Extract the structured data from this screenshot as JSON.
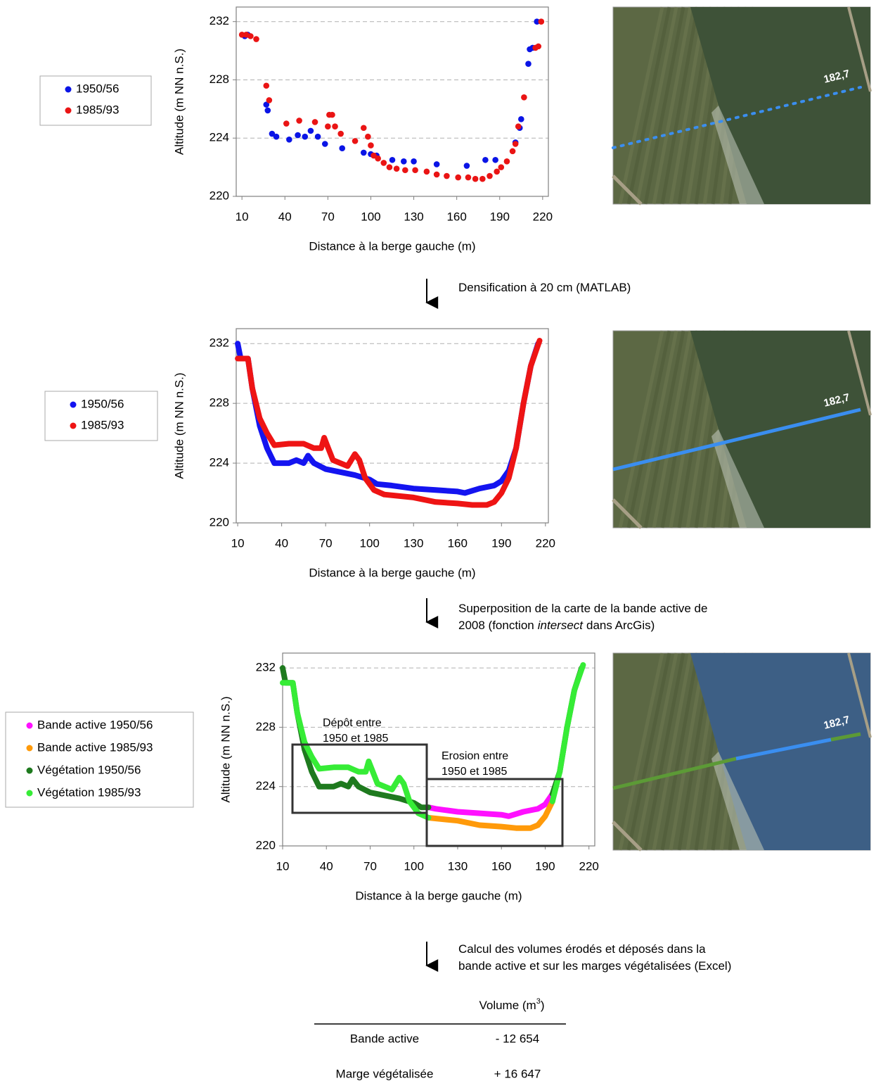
{
  "chart_data": [
    {
      "type": "scatter",
      "x_label": "Distance à la berge gauche (m)",
      "y_label": "Altitude (m NN n.S.)",
      "xlim": [
        6,
        224
      ],
      "ylim": [
        220,
        233
      ],
      "xticks": [
        10,
        40,
        70,
        100,
        130,
        160,
        190,
        220
      ],
      "yticks": [
        220,
        224,
        228,
        232
      ],
      "grid": true,
      "series": [
        {
          "name": "1950/56",
          "color": "#0a14e6",
          "x": [
            12,
            14,
            27,
            28,
            31,
            34,
            43,
            49,
            54,
            58,
            63,
            68,
            80,
            95,
            100,
            104,
            115,
            123,
            130,
            146,
            167,
            180,
            187,
            201,
            204,
            205,
            210,
            211,
            213,
            216
          ],
          "values": [
            231,
            231.1,
            226.3,
            225.9,
            224.3,
            224.1,
            223.9,
            224.2,
            224.1,
            224.5,
            224.1,
            223.6,
            223.3,
            223,
            222.9,
            222.8,
            222.5,
            222.4,
            222.4,
            222.2,
            222.1,
            222.5,
            222.5,
            223.7,
            224.7,
            225.3,
            229.1,
            230.1,
            230.2,
            232
          ]
        },
        {
          "name": "1985/93",
          "color": "#ea1414",
          "x": [
            10,
            13,
            16,
            20,
            27,
            29,
            41,
            50,
            61,
            70,
            71,
            73,
            75,
            79,
            89,
            95,
            98,
            100,
            102,
            105,
            109,
            113,
            118,
            124,
            131,
            139,
            146,
            153,
            161,
            168,
            173,
            178,
            183,
            188,
            191,
            195,
            199,
            201,
            203,
            207,
            215,
            217,
            219
          ],
          "values": [
            231.1,
            231.1,
            231,
            230.8,
            227.6,
            226.6,
            225,
            225.2,
            225.1,
            224.8,
            225.6,
            225.6,
            224.8,
            224.3,
            223.8,
            224.7,
            224.1,
            223.5,
            222.8,
            222.6,
            222.3,
            222,
            221.9,
            221.8,
            221.8,
            221.7,
            221.5,
            221.4,
            221.3,
            221.3,
            221.2,
            221.2,
            221.4,
            221.7,
            222,
            222.4,
            223.1,
            223.6,
            224.8,
            226.8,
            230.2,
            230.3,
            232
          ]
        }
      ]
    },
    {
      "type": "line",
      "x_label": "Distance à la berge gauche (m)",
      "y_label": "Altitude (m NN n.S.)",
      "xlim": [
        9,
        222
      ],
      "ylim": [
        220,
        233
      ],
      "xticks": [
        10,
        40,
        70,
        100,
        130,
        160,
        190,
        220
      ],
      "yticks": [
        220,
        224,
        228,
        232
      ],
      "grid": true,
      "series": [
        {
          "name": "1950/56",
          "color": "#1414f0",
          "x": [
            10,
            12,
            17,
            20,
            25,
            30,
            35,
            45,
            50,
            55,
            58,
            62,
            70,
            90,
            100,
            105,
            115,
            130,
            145,
            160,
            165,
            175,
            185,
            190,
            195,
            200,
            205,
            210,
            215
          ],
          "values": [
            232,
            231,
            231,
            229,
            226.5,
            225,
            224,
            224,
            224.2,
            224,
            224.5,
            224,
            223.6,
            223.2,
            222.9,
            222.6,
            222.5,
            222.3,
            222.2,
            222.1,
            222,
            222.3,
            222.5,
            222.8,
            223.5,
            225,
            228,
            230.5,
            232
          ]
        },
        {
          "name": "1985/93",
          "color": "#ee1414",
          "x": [
            10,
            17,
            20,
            25,
            30,
            35,
            45,
            55,
            62,
            67,
            69,
            71,
            75,
            85,
            90,
            93,
            97,
            103,
            110,
            130,
            145,
            160,
            170,
            180,
            185,
            190,
            195,
            200,
            205,
            210,
            216
          ],
          "values": [
            231,
            231,
            229,
            227,
            226,
            225.2,
            225.3,
            225.3,
            225,
            225,
            225.7,
            225.2,
            224.2,
            223.8,
            224.6,
            224.2,
            223,
            222.2,
            221.9,
            221.7,
            221.4,
            221.3,
            221.2,
            221.2,
            221.4,
            222,
            223,
            225,
            228,
            230.5,
            232.2
          ]
        }
      ]
    },
    {
      "type": "line",
      "x_label": "Distance à la berge gauche (m)",
      "y_label": "Altitude (m NN n.S.)",
      "xlim": [
        10,
        224
      ],
      "ylim": [
        220,
        233
      ],
      "xticks": [
        10,
        40,
        70,
        100,
        130,
        160,
        190,
        220
      ],
      "yticks": [
        220,
        224,
        228,
        232
      ],
      "grid": true,
      "annotations": [
        [
          "Dépôt entre",
          "1950 et 1985"
        ],
        [
          "Erosion entre",
          "1950 et 1985"
        ]
      ],
      "series": [
        {
          "name": "Bande active 1950/56",
          "color": "#ff10ff",
          "x": [
            110,
            115,
            130,
            145,
            160,
            165,
            175,
            185,
            190,
            195
          ],
          "values": [
            222.6,
            222.5,
            222.3,
            222.2,
            222.1,
            222,
            222.3,
            222.5,
            222.8,
            223.5
          ]
        },
        {
          "name": "Bande active 1985/93",
          "color": "#ff9a0a",
          "x": [
            110,
            130,
            145,
            160,
            170,
            180,
            185,
            190,
            195
          ],
          "values": [
            221.9,
            221.7,
            221.4,
            221.3,
            221.2,
            221.2,
            221.4,
            222,
            223
          ]
        },
        {
          "name": "Végétation 1950/56",
          "color": "#1e7a1e",
          "x": [
            10,
            12,
            17,
            20,
            25,
            30,
            35,
            45,
            50,
            55,
            58,
            62,
            70,
            90,
            100,
            105,
            110,
            null,
            195,
            200,
            205,
            210,
            215
          ],
          "values": [
            232,
            231,
            231,
            229,
            226.5,
            225,
            224,
            224,
            224.2,
            224,
            224.5,
            224,
            223.6,
            223.2,
            222.9,
            222.6,
            222.6,
            null,
            223.5,
            225,
            228,
            230.5,
            232
          ]
        },
        {
          "name": "Végétation 1985/93",
          "color": "#36ec36",
          "x": [
            10,
            17,
            20,
            25,
            30,
            35,
            45,
            55,
            62,
            67,
            69,
            71,
            75,
            85,
            90,
            93,
            97,
            103,
            110,
            null,
            195,
            200,
            205,
            210,
            216
          ],
          "values": [
            231,
            231,
            229,
            227,
            226,
            225.2,
            225.3,
            225.3,
            225,
            225,
            225.7,
            225.2,
            224.2,
            223.8,
            224.6,
            224.2,
            223,
            222.2,
            221.9,
            null,
            223,
            225,
            228,
            230.5,
            232.2
          ]
        }
      ]
    }
  ],
  "photos": [
    {
      "label": "182,7"
    },
    {
      "label": "182,7"
    },
    {
      "label": "182,7"
    }
  ],
  "steps": [
    {
      "lines": [
        [
          "Densification à 20 cm (MATLAB)"
        ]
      ]
    },
    {
      "lines": [
        [
          "Superposition de la carte de la bande active de"
        ],
        [
          "2008 (fonction",
          "intersect",
          "dans ArcGis)"
        ]
      ]
    },
    {
      "lines": [
        [
          "Calcul des volumes érodés et déposés dans la"
        ],
        [
          "bande active et sur les marges végétalisées (Excel)"
        ]
      ]
    }
  ],
  "table": {
    "header": {
      "text": "Volume (m",
      "sup": "3",
      "close": ")"
    },
    "rows": [
      [
        "Bande active",
        "- 12 654"
      ],
      [
        "Marge végétalisée",
        "+ 16 647"
      ]
    ]
  }
}
